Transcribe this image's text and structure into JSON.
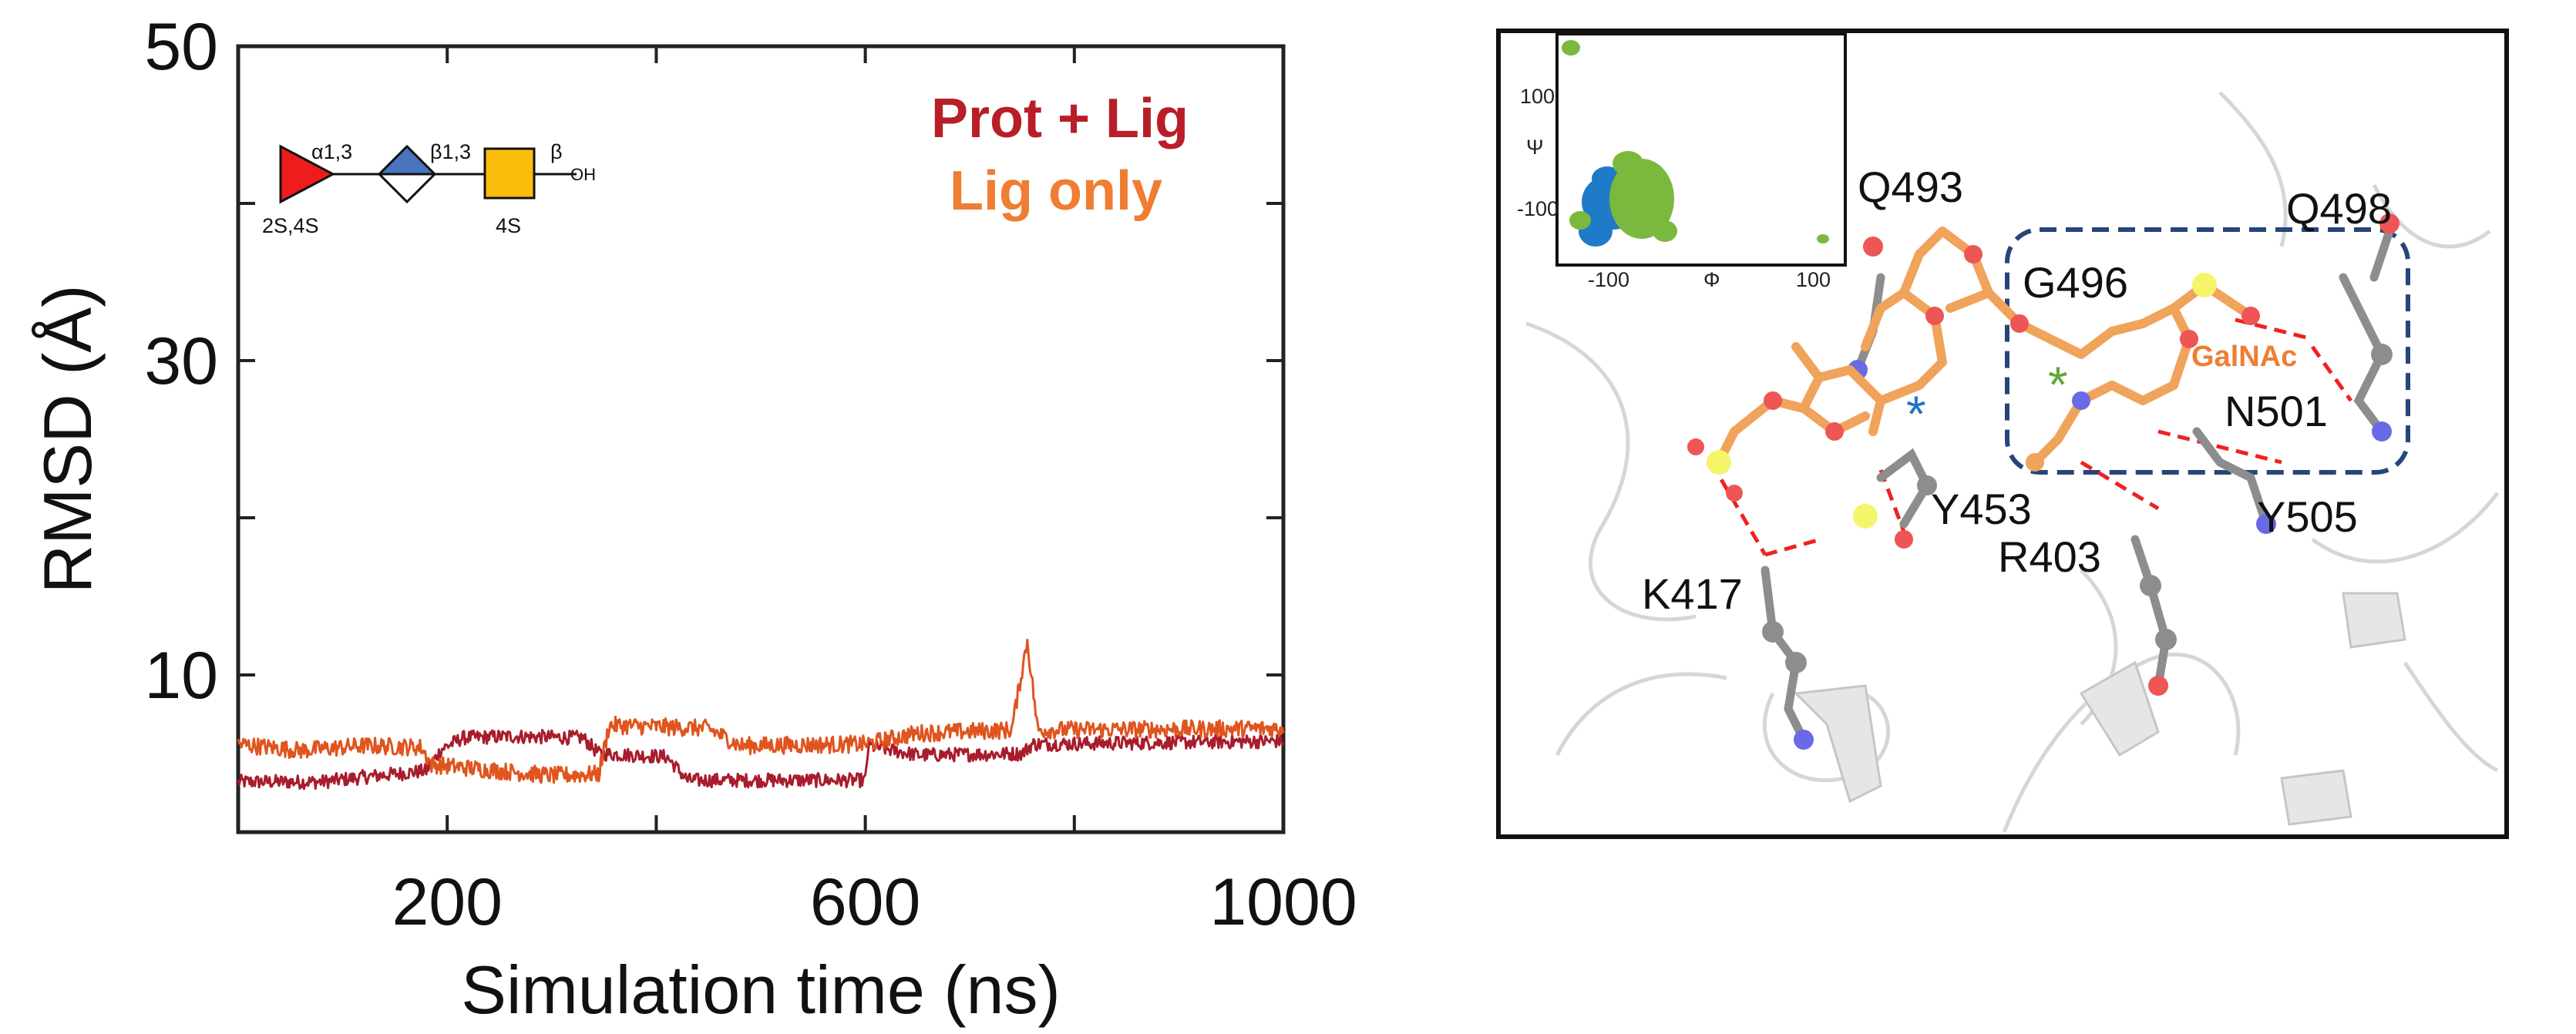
{
  "chart_data": {
    "type": "line",
    "title": "",
    "xlabel": "Simulation time (ns)",
    "ylabel": "RMSD (Å)",
    "xlim": [
      0,
      1000
    ],
    "ylim": [
      0,
      50
    ],
    "x_ticks": [
      200,
      600,
      1000
    ],
    "y_ticks": [
      10,
      30,
      50
    ],
    "x_tick_labels": [
      "200",
      "600",
      "1000"
    ],
    "y_tick_labels": [
      "10",
      "30",
      "50"
    ],
    "legend_position": "top-right",
    "series": [
      {
        "name": "Prot + Lig",
        "color": "#a81c2c",
        "noise": 0.45,
        "points": [
          [
            0,
            3.2
          ],
          [
            80,
            3.2
          ],
          [
            120,
            3.5
          ],
          [
            180,
            3.9
          ],
          [
            195,
            5.3
          ],
          [
            215,
            6.0
          ],
          [
            260,
            6.1
          ],
          [
            330,
            6.0
          ],
          [
            345,
            5.0
          ],
          [
            410,
            4.8
          ],
          [
            430,
            3.3
          ],
          [
            600,
            3.3
          ],
          [
            603,
            5.5
          ],
          [
            650,
            4.9
          ],
          [
            750,
            5.0
          ],
          [
            760,
            5.6
          ],
          [
            1000,
            5.8
          ]
        ]
      },
      {
        "name": "Lig only",
        "color": "#e0541e",
        "noise": 0.55,
        "points": [
          [
            0,
            5.6
          ],
          [
            60,
            5.2
          ],
          [
            120,
            5.5
          ],
          [
            175,
            5.4
          ],
          [
            185,
            4.3
          ],
          [
            300,
            3.6
          ],
          [
            345,
            3.7
          ],
          [
            355,
            6.8
          ],
          [
            450,
            6.6
          ],
          [
            480,
            5.5
          ],
          [
            600,
            5.6
          ],
          [
            650,
            6.3
          ],
          [
            740,
            6.5
          ],
          [
            755,
            12.2
          ],
          [
            765,
            6.5
          ],
          [
            1000,
            6.6
          ]
        ]
      }
    ],
    "legend": [
      {
        "label": "Prot + Lig",
        "color": "#a81c2c"
      },
      {
        "label": "Lig only",
        "color": "#ef7d32"
      }
    ]
  },
  "glycan": {
    "linkage1": "α1,3",
    "linkage2": "β1,3",
    "anomer": "β",
    "oh": "OH",
    "sulfation_fucose": "2S,4S",
    "sulfation_galnac": "4S"
  },
  "structure_panel": {
    "inset": {
      "ylabel": "Ψ",
      "xlabel": "Φ",
      "y_tick_labels": [
        "100",
        "-100"
      ],
      "x_tick_labels": [
        "-100",
        "100"
      ]
    },
    "residues": [
      "Q493",
      "G496",
      "Q498",
      "N501",
      "Y505",
      "Y453",
      "R403",
      "K417"
    ],
    "galnac_label": "GalNAc",
    "marker_blue": "*",
    "marker_green": "*"
  }
}
